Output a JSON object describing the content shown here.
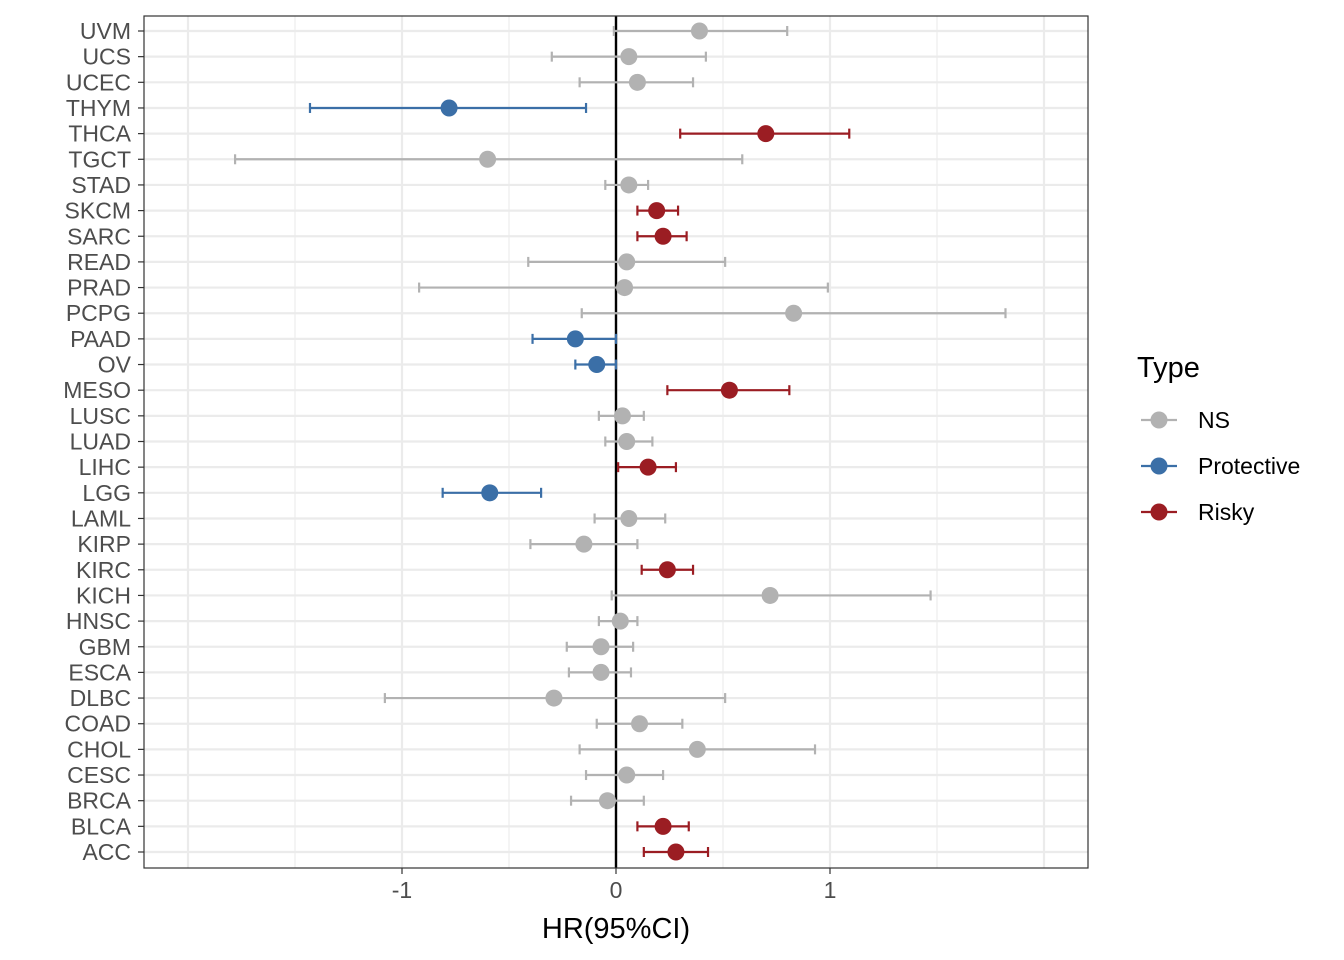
{
  "chart_data": {
    "type": "scatter",
    "xlabel": "HR(95%CI)",
    "ylabel": "",
    "xlim": [
      -2.0,
      2.2
    ],
    "x_ticks": [
      -1,
      0,
      1
    ],
    "x_tick_labels": [
      "-1",
      "0",
      "1"
    ],
    "grid": true,
    "reference_line_x": 0,
    "legend": {
      "title": "Type",
      "placement": "right",
      "items": [
        {
          "label": "NS",
          "color": "#b2b2b2"
        },
        {
          "label": "Protective",
          "color": "#3b6fa7"
        },
        {
          "label": "Risky",
          "color": "#9b1d23"
        }
      ]
    },
    "categories": [
      "ACC",
      "BLCA",
      "BRCA",
      "CESC",
      "CHOL",
      "COAD",
      "DLBC",
      "ESCA",
      "GBM",
      "HNSC",
      "KICH",
      "KIRC",
      "KIRP",
      "LAML",
      "LGG",
      "LIHC",
      "LUAD",
      "LUSC",
      "MESO",
      "OV",
      "PAAD",
      "PCPG",
      "PRAD",
      "READ",
      "SARC",
      "SKCM",
      "STAD",
      "TGCT",
      "THCA",
      "THYM",
      "UCEC",
      "UCS",
      "UVM"
    ],
    "points": [
      {
        "cancer": "ACC",
        "hr": 0.28,
        "lower": 0.13,
        "upper": 0.43,
        "type": "Risky"
      },
      {
        "cancer": "BLCA",
        "hr": 0.22,
        "lower": 0.1,
        "upper": 0.34,
        "type": "Risky"
      },
      {
        "cancer": "BRCA",
        "hr": -0.04,
        "lower": -0.21,
        "upper": 0.13,
        "type": "NS"
      },
      {
        "cancer": "CESC",
        "hr": 0.05,
        "lower": -0.14,
        "upper": 0.22,
        "type": "NS"
      },
      {
        "cancer": "CHOL",
        "hr": 0.38,
        "lower": -0.17,
        "upper": 0.93,
        "type": "NS"
      },
      {
        "cancer": "COAD",
        "hr": 0.11,
        "lower": -0.09,
        "upper": 0.31,
        "type": "NS"
      },
      {
        "cancer": "DLBC",
        "hr": -0.29,
        "lower": -1.08,
        "upper": 0.51,
        "type": "NS"
      },
      {
        "cancer": "ESCA",
        "hr": -0.07,
        "lower": -0.22,
        "upper": 0.07,
        "type": "NS"
      },
      {
        "cancer": "GBM",
        "hr": -0.07,
        "lower": -0.23,
        "upper": 0.08,
        "type": "NS"
      },
      {
        "cancer": "HNSC",
        "hr": 0.02,
        "lower": -0.08,
        "upper": 0.1,
        "type": "NS"
      },
      {
        "cancer": "KICH",
        "hr": 0.72,
        "lower": -0.02,
        "upper": 1.47,
        "type": "NS"
      },
      {
        "cancer": "KIRC",
        "hr": 0.24,
        "lower": 0.12,
        "upper": 0.36,
        "type": "Risky"
      },
      {
        "cancer": "KIRP",
        "hr": -0.15,
        "lower": -0.4,
        "upper": 0.1,
        "type": "NS"
      },
      {
        "cancer": "LAML",
        "hr": 0.06,
        "lower": -0.1,
        "upper": 0.23,
        "type": "NS"
      },
      {
        "cancer": "LGG",
        "hr": -0.59,
        "lower": -0.81,
        "upper": -0.35,
        "type": "Protective"
      },
      {
        "cancer": "LIHC",
        "hr": 0.15,
        "lower": 0.01,
        "upper": 0.28,
        "type": "Risky"
      },
      {
        "cancer": "LUAD",
        "hr": 0.05,
        "lower": -0.05,
        "upper": 0.17,
        "type": "NS"
      },
      {
        "cancer": "LUSC",
        "hr": 0.03,
        "lower": -0.08,
        "upper": 0.13,
        "type": "NS"
      },
      {
        "cancer": "MESO",
        "hr": 0.53,
        "lower": 0.24,
        "upper": 0.81,
        "type": "Risky"
      },
      {
        "cancer": "OV",
        "hr": -0.09,
        "lower": -0.19,
        "upper": 0.0,
        "type": "Protective"
      },
      {
        "cancer": "PAAD",
        "hr": -0.19,
        "lower": -0.39,
        "upper": 0.0,
        "type": "Protective"
      },
      {
        "cancer": "PCPG",
        "hr": 0.83,
        "lower": -0.16,
        "upper": 1.82,
        "type": "NS"
      },
      {
        "cancer": "PRAD",
        "hr": 0.04,
        "lower": -0.92,
        "upper": 0.99,
        "type": "NS"
      },
      {
        "cancer": "READ",
        "hr": 0.05,
        "lower": -0.41,
        "upper": 0.51,
        "type": "NS"
      },
      {
        "cancer": "SARC",
        "hr": 0.22,
        "lower": 0.1,
        "upper": 0.33,
        "type": "Risky"
      },
      {
        "cancer": "SKCM",
        "hr": 0.19,
        "lower": 0.1,
        "upper": 0.29,
        "type": "Risky"
      },
      {
        "cancer": "STAD",
        "hr": 0.06,
        "lower": -0.05,
        "upper": 0.15,
        "type": "NS"
      },
      {
        "cancer": "TGCT",
        "hr": -0.6,
        "lower": -1.78,
        "upper": 0.59,
        "type": "NS"
      },
      {
        "cancer": "THCA",
        "hr": 0.7,
        "lower": 0.3,
        "upper": 1.09,
        "type": "Risky"
      },
      {
        "cancer": "THYM",
        "hr": -0.78,
        "lower": -1.43,
        "upper": -0.14,
        "type": "Protective"
      },
      {
        "cancer": "UCEC",
        "hr": 0.1,
        "lower": -0.17,
        "upper": 0.36,
        "type": "NS"
      },
      {
        "cancer": "UCS",
        "hr": 0.06,
        "lower": -0.3,
        "upper": 0.42,
        "type": "NS"
      },
      {
        "cancer": "UVM",
        "hr": 0.39,
        "lower": -0.01,
        "upper": 0.8,
        "type": "NS"
      }
    ]
  }
}
